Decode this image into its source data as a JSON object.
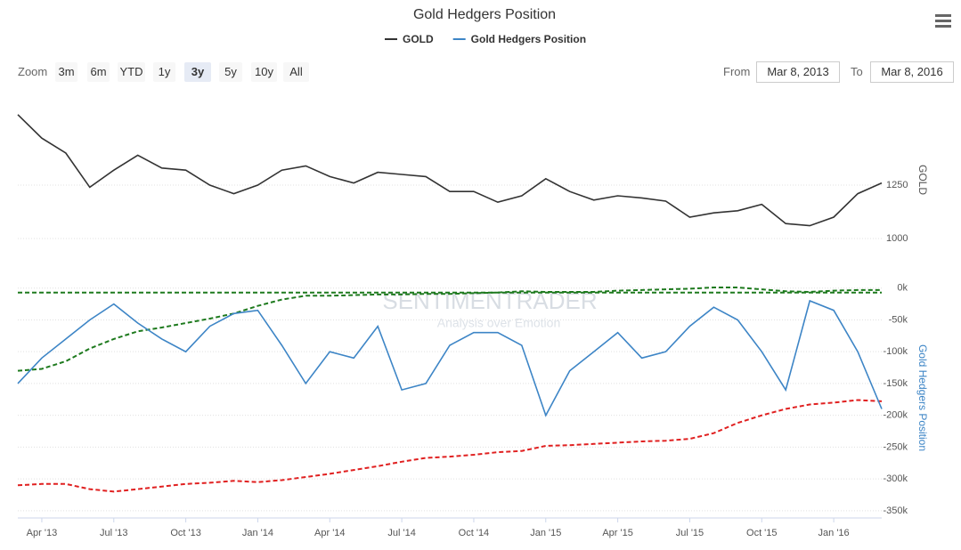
{
  "range_selector": {
    "zoom_label": "Zoom",
    "buttons": [
      "3m",
      "6m",
      "YTD",
      "1y",
      "3y",
      "5y",
      "10y",
      "All"
    ],
    "selected": "3y",
    "from_label": "From",
    "from": "Mar 8, 2013",
    "to_label": "To",
    "to": "Mar 8, 2016"
  },
  "watermark": {
    "brand": "SENTIMENTRADER",
    "tagline": "Analysis over Emotion"
  },
  "chart_data": [
    {
      "type": "line",
      "title": "Gold Hedgers Position",
      "y_label": "GOLD",
      "x": [
        "2013-03",
        "2013-04",
        "2013-05",
        "2013-06",
        "2013-07",
        "2013-08",
        "2013-09",
        "2013-10",
        "2013-11",
        "2013-12",
        "2014-01",
        "2014-02",
        "2014-03",
        "2014-04",
        "2014-05",
        "2014-06",
        "2014-07",
        "2014-08",
        "2014-09",
        "2014-10",
        "2014-11",
        "2014-12",
        "2015-01",
        "2015-02",
        "2015-03",
        "2015-04",
        "2015-05",
        "2015-06",
        "2015-07",
        "2015-08",
        "2015-09",
        "2015-10",
        "2015-11",
        "2015-12",
        "2016-01",
        "2016-02",
        "2016-03"
      ],
      "xlim": [
        "2013-03",
        "2016-03"
      ],
      "ylim": [
        900,
        1650
      ],
      "yticks": [
        1000,
        1250
      ],
      "grid": true,
      "series": [
        {
          "name": "GOLD",
          "color": "#333333",
          "values": [
            1580,
            1470,
            1400,
            1240,
            1320,
            1390,
            1330,
            1320,
            1250,
            1210,
            1250,
            1320,
            1340,
            1290,
            1260,
            1310,
            1300,
            1290,
            1220,
            1220,
            1170,
            1200,
            1280,
            1220,
            1180,
            1200,
            1190,
            1175,
            1100,
            1120,
            1130,
            1160,
            1070,
            1060,
            1100,
            1210,
            1260
          ]
        }
      ]
    },
    {
      "type": "line",
      "y_label": "Gold Hedgers Position",
      "x": [
        "2013-03",
        "2013-04",
        "2013-05",
        "2013-06",
        "2013-07",
        "2013-08",
        "2013-09",
        "2013-10",
        "2013-11",
        "2013-12",
        "2014-01",
        "2014-02",
        "2014-03",
        "2014-04",
        "2014-05",
        "2014-06",
        "2014-07",
        "2014-08",
        "2014-09",
        "2014-10",
        "2014-11",
        "2014-12",
        "2015-01",
        "2015-02",
        "2015-03",
        "2015-04",
        "2015-05",
        "2015-06",
        "2015-07",
        "2015-08",
        "2015-09",
        "2015-10",
        "2015-11",
        "2015-12",
        "2016-01",
        "2016-02",
        "2016-03"
      ],
      "xlim": [
        "2013-03",
        "2016-03"
      ],
      "xticks": [
        {
          "value": "2013-04",
          "label": "Apr '13"
        },
        {
          "value": "2013-07",
          "label": "Jul '13"
        },
        {
          "value": "2013-10",
          "label": "Oct '13"
        },
        {
          "value": "2014-01",
          "label": "Jan '14"
        },
        {
          "value": "2014-04",
          "label": "Apr '14"
        },
        {
          "value": "2014-07",
          "label": "Jul '14"
        },
        {
          "value": "2014-10",
          "label": "Oct '14"
        },
        {
          "value": "2015-01",
          "label": "Jan '15"
        },
        {
          "value": "2015-04",
          "label": "Apr '15"
        },
        {
          "value": "2015-07",
          "label": "Jul '15"
        },
        {
          "value": "2015-10",
          "label": "Oct '15"
        },
        {
          "value": "2016-01",
          "label": "Jan '16"
        }
      ],
      "ylim": [
        -360000,
        15000
      ],
      "yticks": [
        {
          "value": 0,
          "label": "0k"
        },
        {
          "value": -50000,
          "label": "-50k"
        },
        {
          "value": -100000,
          "label": "-100k"
        },
        {
          "value": -150000,
          "label": "-150k"
        },
        {
          "value": -200000,
          "label": "-200k"
        },
        {
          "value": -250000,
          "label": "-250k"
        },
        {
          "value": -300000,
          "label": "-300k"
        },
        {
          "value": -350000,
          "label": "-350k"
        }
      ],
      "grid": true,
      "series": [
        {
          "name": "Gold Hedgers Position",
          "color": "#3d85c6",
          "values": [
            -150000,
            -110000,
            -80000,
            -50000,
            -25000,
            -55000,
            -80000,
            -100000,
            -60000,
            -40000,
            -35000,
            -90000,
            -150000,
            -100000,
            -110000,
            -60000,
            -160000,
            -150000,
            -90000,
            -70000,
            -70000,
            -90000,
            -200000,
            -130000,
            -100000,
            -70000,
            -110000,
            -100000,
            -60000,
            -30000,
            -50000,
            -100000,
            -160000,
            -20000,
            -35000,
            -100000,
            -190000
          ]
        },
        {
          "color": "#1e7a1e",
          "dash": true,
          "values": [
            -130000,
            -127000,
            -115000,
            -95000,
            -80000,
            -68000,
            -62000,
            -55000,
            -48000,
            -40000,
            -28000,
            -18000,
            -12000,
            -12000,
            -11000,
            -10000,
            -10000,
            -9000,
            -9000,
            -8000,
            -7000,
            -5000,
            -6000,
            -6000,
            -6000,
            -4000,
            -3000,
            -2000,
            -1000,
            1000,
            1000,
            -2000,
            -5000,
            -6000,
            -4000,
            -3000,
            -3000
          ]
        },
        {
          "color": "#1e7a1e",
          "dash": true,
          "values": [
            -7000,
            -7000,
            -7000,
            -7000,
            -7000,
            -7000,
            -7000,
            -7000,
            -7000,
            -7000,
            -7000,
            -7000,
            -7000,
            -7000,
            -7000,
            -7000,
            -7000,
            -7000,
            -7000,
            -7000,
            -7000,
            -7000,
            -7000,
            -7000,
            -7000,
            -7000,
            -7000,
            -7000,
            -7000,
            -7000,
            -7000,
            -7000,
            -7000,
            -7000,
            -7000,
            -7000,
            -7000
          ]
        },
        {
          "color": "#e02020",
          "dash": true,
          "values": [
            -310000,
            -308000,
            -308000,
            -316000,
            -320000,
            -316000,
            -312000,
            -308000,
            -306000,
            -303000,
            -305000,
            -302000,
            -297000,
            -292000,
            -286000,
            -280000,
            -273000,
            -267000,
            -265000,
            -262000,
            -258000,
            -256000,
            -248000,
            -247000,
            -245000,
            -243000,
            -241000,
            -240000,
            -237000,
            -228000,
            -212000,
            -200000,
            -190000,
            -183000,
            -180000,
            -176000,
            -178000
          ]
        }
      ]
    }
  ]
}
